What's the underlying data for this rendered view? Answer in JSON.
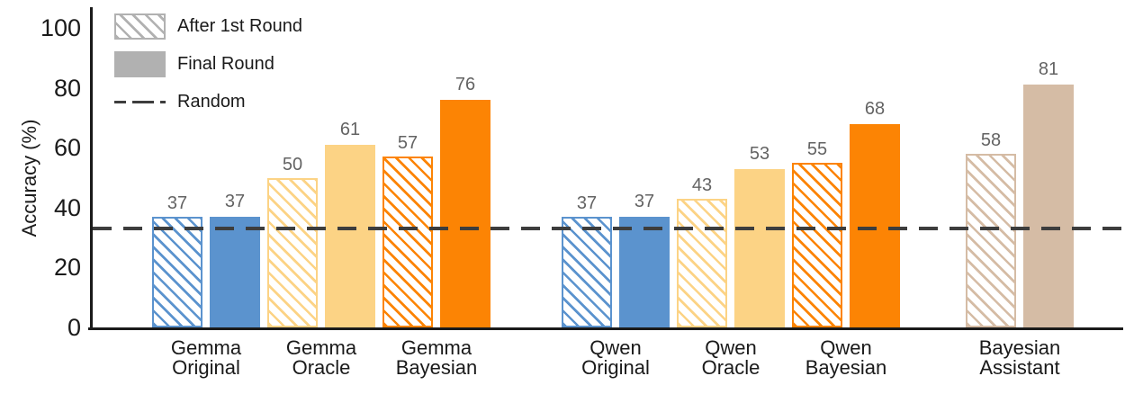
{
  "chart_data": {
    "type": "bar",
    "title": "",
    "ylabel": "Accuracy (%)",
    "ylim": [
      0,
      100
    ],
    "yticks": [
      0,
      20,
      40,
      60,
      80,
      100
    ],
    "grid": false,
    "categories": [
      {
        "label_line1": "Gemma",
        "label_line2": "Original",
        "family": 0,
        "color": "#5B93CE"
      },
      {
        "label_line1": "Gemma",
        "label_line2": "Oracle",
        "family": 0,
        "color": "#FCD385"
      },
      {
        "label_line1": "Gemma",
        "label_line2": "Bayesian",
        "family": 0,
        "color": "#FC8404"
      },
      {
        "label_line1": "Qwen",
        "label_line2": "Original",
        "family": 1,
        "color": "#5B93CE"
      },
      {
        "label_line1": "Qwen",
        "label_line2": "Oracle",
        "family": 1,
        "color": "#FCD385"
      },
      {
        "label_line1": "Qwen",
        "label_line2": "Bayesian",
        "family": 1,
        "color": "#FC8404"
      },
      {
        "label_line1": "Bayesian",
        "label_line2": "Assistant",
        "family": 2,
        "color": "#D5BCA5"
      }
    ],
    "series": [
      {
        "name": "After 1st Round",
        "style": "hatched",
        "values": [
          37,
          50,
          57,
          37,
          43,
          55,
          58
        ]
      },
      {
        "name": "Final Round",
        "style": "solid",
        "values": [
          37,
          61,
          76,
          37,
          53,
          68,
          81
        ]
      }
    ],
    "random_line": {
      "label": "Random",
      "value": 33,
      "color": "#3D3D3D"
    },
    "legend": {
      "position": "top-left",
      "items": [
        {
          "label": "After 1st Round",
          "swatch": "hatched",
          "color": "#B1B1B1"
        },
        {
          "label": "Final Round",
          "swatch": "solid",
          "color": "#B1B1B1"
        },
        {
          "label": "Random",
          "swatch": "dashed-line",
          "color": "#3D3D3D"
        }
      ]
    }
  }
}
